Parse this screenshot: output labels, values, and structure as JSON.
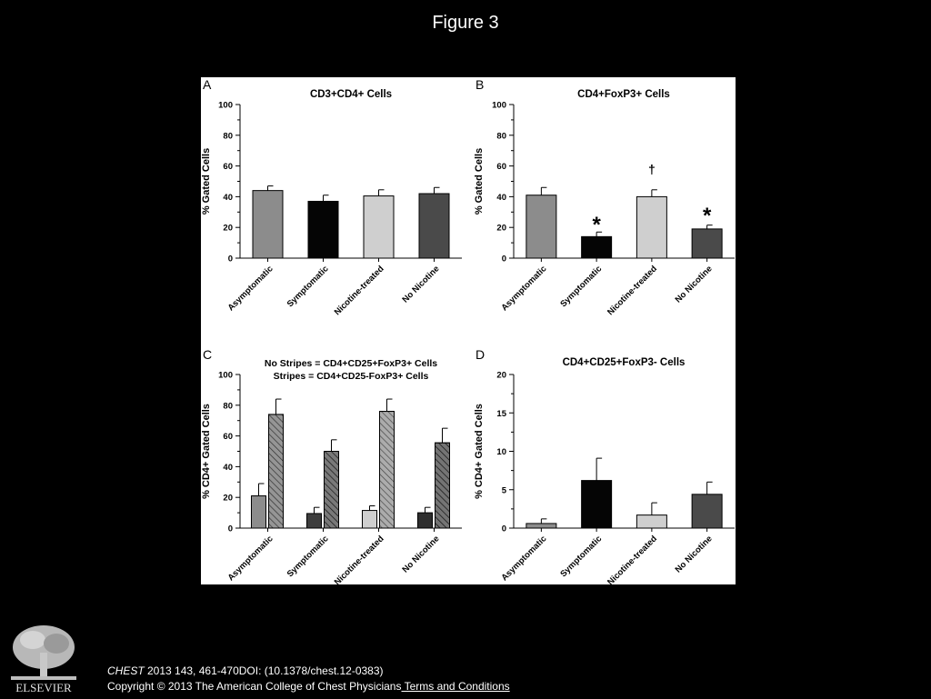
{
  "slide": {
    "title": "Figure 3"
  },
  "footer": {
    "journal": "CHEST",
    "citation_rest": " 2013 143, 461-470DOI: (10.1378/chest.12-0383)",
    "copyright": "Copyright © 2013 The American College of Chest Physicians",
    "terms_link": " Terms and Conditions",
    "publisher_logo": "ELSEVIER"
  },
  "colors": {
    "asymptomatic": "#8c8c8c",
    "symptomatic": "#050505",
    "nicotine_treated": "#cfcfcf",
    "no_nicotine": "#4a4a4a",
    "symptomatic_panel_c": "#3d3d3d",
    "no_nicotine_panel_c": "#2e2e2e"
  },
  "chart_data": [
    {
      "panel": "A",
      "type": "bar",
      "title": "CD3+CD4+ Cells",
      "ylabel": "% Gated Cells",
      "xlabel": "",
      "ylim": [
        0,
        100
      ],
      "yticks": [
        0,
        20,
        40,
        60,
        80,
        100
      ],
      "categories": [
        "Asymptomatic",
        "Symptomatic",
        "Nicotine-treated",
        "No Nicotine"
      ],
      "series": [
        {
          "name": "",
          "pattern": "solid",
          "values": [
            44,
            37,
            40.5,
            42
          ],
          "errors": [
            3,
            4,
            4,
            4
          ]
        }
      ],
      "annotations": []
    },
    {
      "panel": "B",
      "type": "bar",
      "title": "CD4+FoxP3+ Cells",
      "ylabel": "% Gated Cells",
      "xlabel": "",
      "ylim": [
        0,
        100
      ],
      "yticks": [
        0,
        20,
        40,
        60,
        80,
        100
      ],
      "categories": [
        "Asymptomatic",
        "Symptomatic",
        "Nicotine-treated",
        "No Nicotine"
      ],
      "series": [
        {
          "name": "",
          "pattern": "solid",
          "values": [
            41,
            14,
            40,
            19
          ],
          "errors": [
            5,
            3,
            4.5,
            2.5
          ]
        }
      ],
      "annotations": [
        {
          "category": 1,
          "text": "*",
          "y": 23
        },
        {
          "category": 2,
          "text": "†",
          "y": 55
        },
        {
          "category": 3,
          "text": "*",
          "y": 29
        }
      ]
    },
    {
      "panel": "C",
      "type": "bar",
      "title": "No Stripes = CD4+CD25+FoxP3+ Cells",
      "subtitle": "Stripes = CD4+CD25-FoxP3+ Cells",
      "ylabel": "% CD4+ Gated Cells",
      "xlabel": "",
      "ylim": [
        0,
        100
      ],
      "yticks": [
        0,
        20,
        40,
        60,
        80,
        100
      ],
      "categories": [
        "Asymptomatic",
        "Symptomatic",
        "Nicotine-treated",
        "No Nicotine"
      ],
      "series": [
        {
          "name": "",
          "pattern": "solid",
          "values": [
            21,
            9.5,
            11.5,
            10
          ],
          "errors": [
            8,
            4,
            3,
            3.5
          ]
        },
        {
          "name": "",
          "pattern": "stripes",
          "values": [
            74,
            50,
            76,
            55.5
          ],
          "errors": [
            10,
            7.5,
            8,
            9.5
          ]
        }
      ],
      "annotations": []
    },
    {
      "panel": "D",
      "type": "bar",
      "title": "CD4+CD25+FoxP3- Cells",
      "ylabel": "% CD4+ Gated Cells",
      "xlabel": "",
      "ylim": [
        0,
        20
      ],
      "yticks": [
        0,
        5,
        10,
        15,
        20
      ],
      "categories": [
        "Asymptomatic",
        "Symptomatic",
        "Nicotine-treated",
        "No Nicotine"
      ],
      "series": [
        {
          "name": "",
          "pattern": "solid",
          "values": [
            0.6,
            6.2,
            1.7,
            4.4
          ],
          "errors": [
            0.6,
            2.9,
            1.6,
            1.6
          ]
        }
      ],
      "annotations": []
    }
  ]
}
